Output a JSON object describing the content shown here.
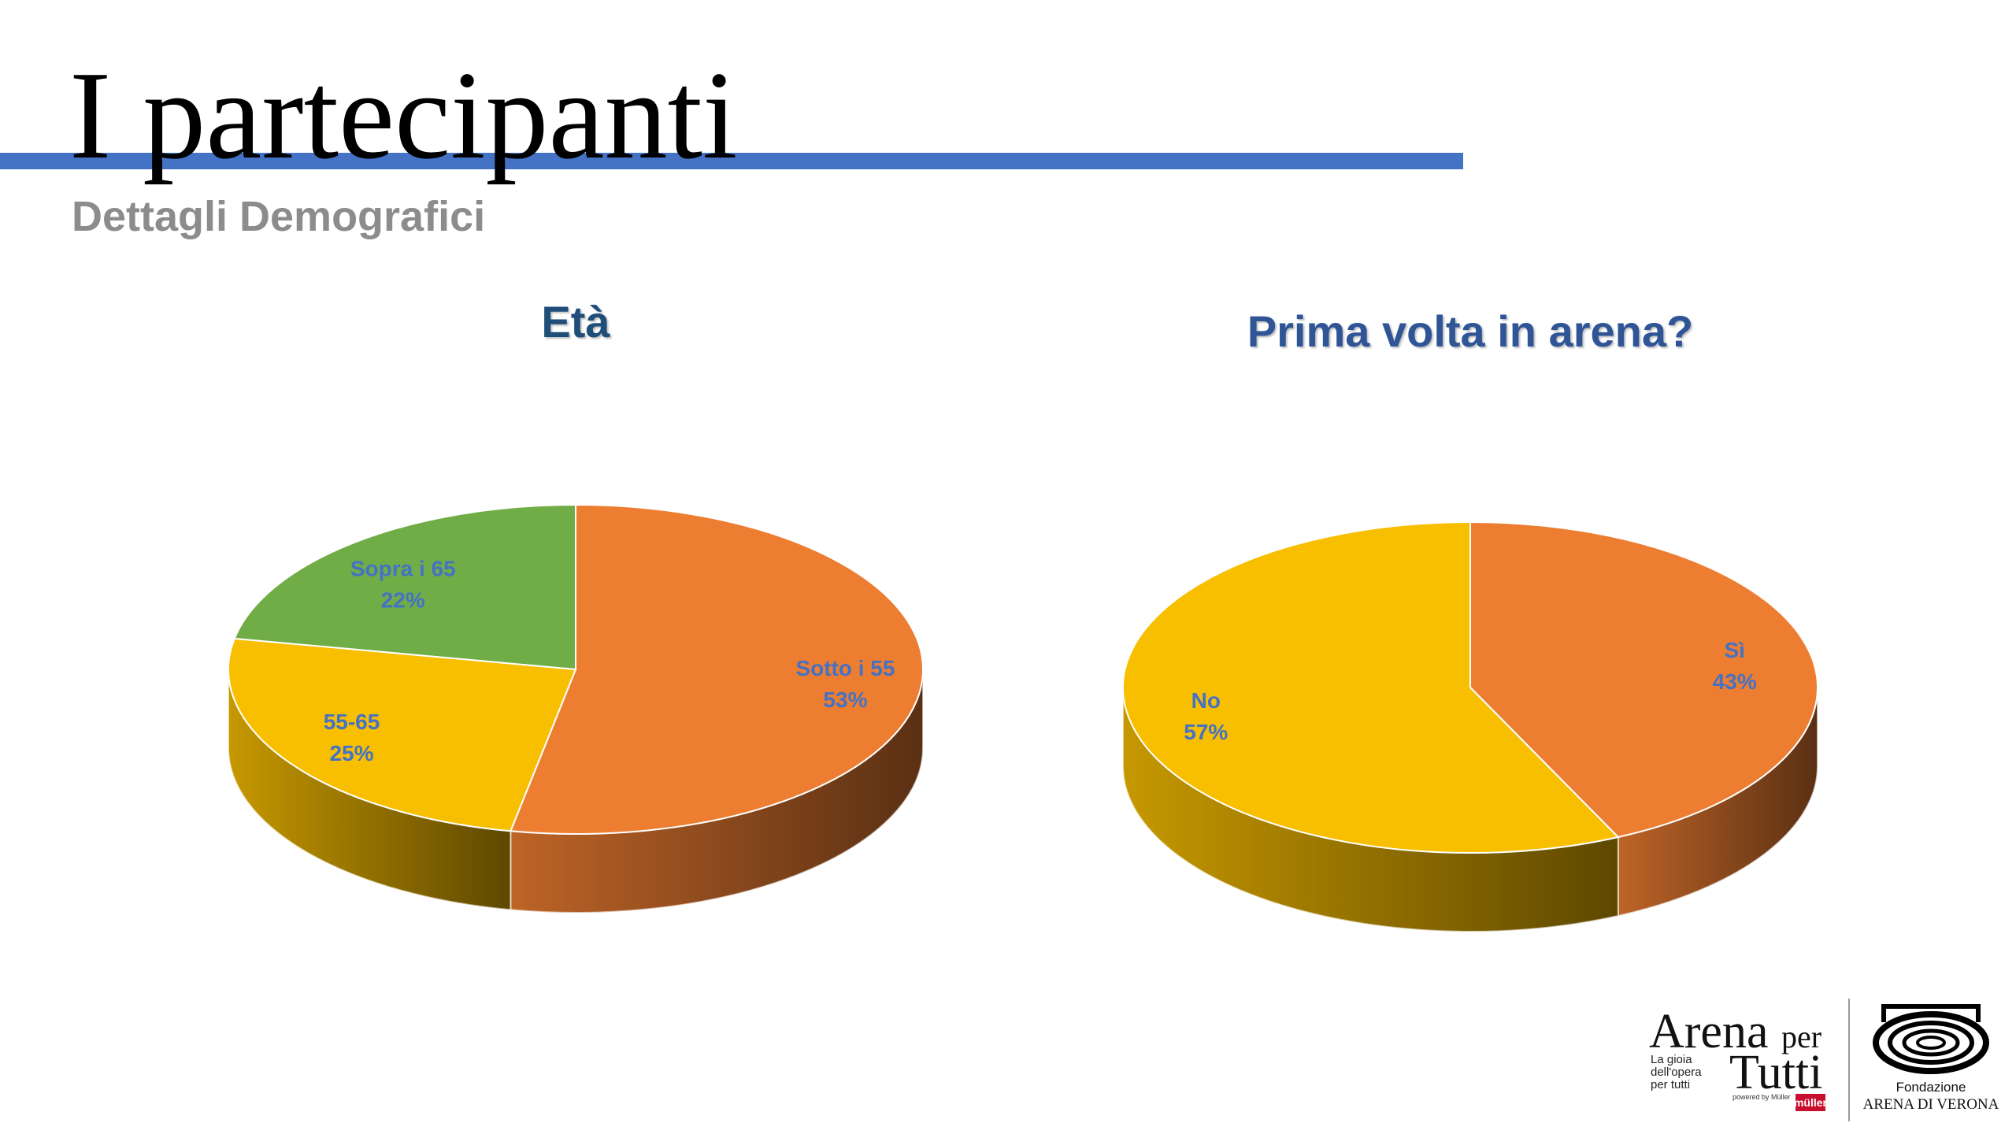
{
  "slide": {
    "title": "I partecipanti",
    "subtitle": "Dettagli Demografici"
  },
  "chart_data": [
    {
      "type": "pie",
      "title": "Età",
      "title_color": "#1f4e79",
      "categories": [
        "Sotto i 55",
        "55-65",
        "Sopra i 65"
      ],
      "values": [
        53,
        25,
        22
      ],
      "value_labels": [
        "53%",
        "25%",
        "22%"
      ],
      "colors": [
        "#ed7d31",
        "#f8be00",
        "#70ad47"
      ]
    },
    {
      "type": "pie",
      "title": "Prima volta in arena?",
      "title_color": "#2f5597",
      "categories": [
        "Sì",
        "No"
      ],
      "values": [
        43,
        57
      ],
      "value_labels": [
        "43%",
        "57%"
      ],
      "colors": [
        "#ed7d31",
        "#f8be00"
      ]
    }
  ],
  "logos": {
    "brand": "Arena",
    "brand_per": "per",
    "brand_tutti": "Tutti",
    "tagline": [
      "La gioia",
      "dell'opera",
      "per tutti"
    ],
    "powered": "powered by Müller",
    "mark": "müller",
    "foundation": "Fondazione",
    "foundation_name": "ARENA DI VERONA"
  }
}
